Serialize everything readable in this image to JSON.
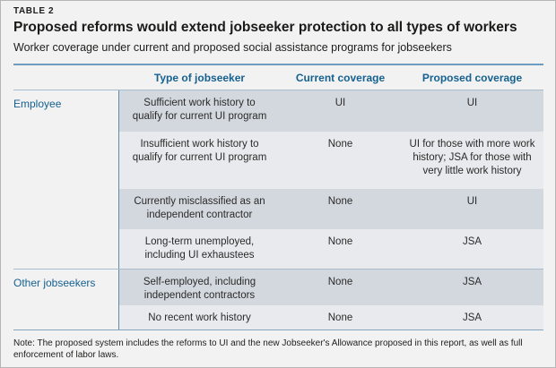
{
  "figure_label": "TABLE 2",
  "chart_data": {
    "type": "table",
    "title": "Proposed reforms would extend jobseeker protection to all types of workers",
    "subtitle": "Worker coverage under current and proposed social assistance programs for jobseekers",
    "columns": [
      "Type of jobseeker",
      "Current coverage",
      "Proposed coverage"
    ],
    "groups": [
      {
        "label": "Employee",
        "rows": [
          {
            "type": "Sufficient work history to qualify for current UI program",
            "current": "UI",
            "proposed": "UI"
          },
          {
            "type": "Insufficient work history to qualify for current UI program",
            "current": "None",
            "proposed": "UI for those with more work history; JSA for those with very little work history"
          },
          {
            "type": "Currently misclassified as an independent contractor",
            "current": "None",
            "proposed": "UI"
          },
          {
            "type": "Long-term unemployed, including UI exhaustees",
            "current": "None",
            "proposed": "JSA"
          }
        ]
      },
      {
        "label": "Other jobseekers",
        "rows": [
          {
            "type": "Self-employed, including independent contractors",
            "current": "None",
            "proposed": "JSA"
          },
          {
            "type": "No recent work history",
            "current": "None",
            "proposed": "JSA"
          }
        ]
      }
    ],
    "note": "Note: The proposed system includes the reforms to UI and the new Jobseeker's Allowance proposed in this report, as well as full enforcement of labor laws."
  },
  "colors": {
    "accent_blue": "#16618f",
    "top_rule_blue": "#6f9cc0",
    "divider_blue": "#5f8cab",
    "row_dark_bg": "#d3d8df",
    "row_light_bg": "#e8eaee",
    "page_bg": "#f2f2f3",
    "text_dark": "#1d1d1b"
  }
}
